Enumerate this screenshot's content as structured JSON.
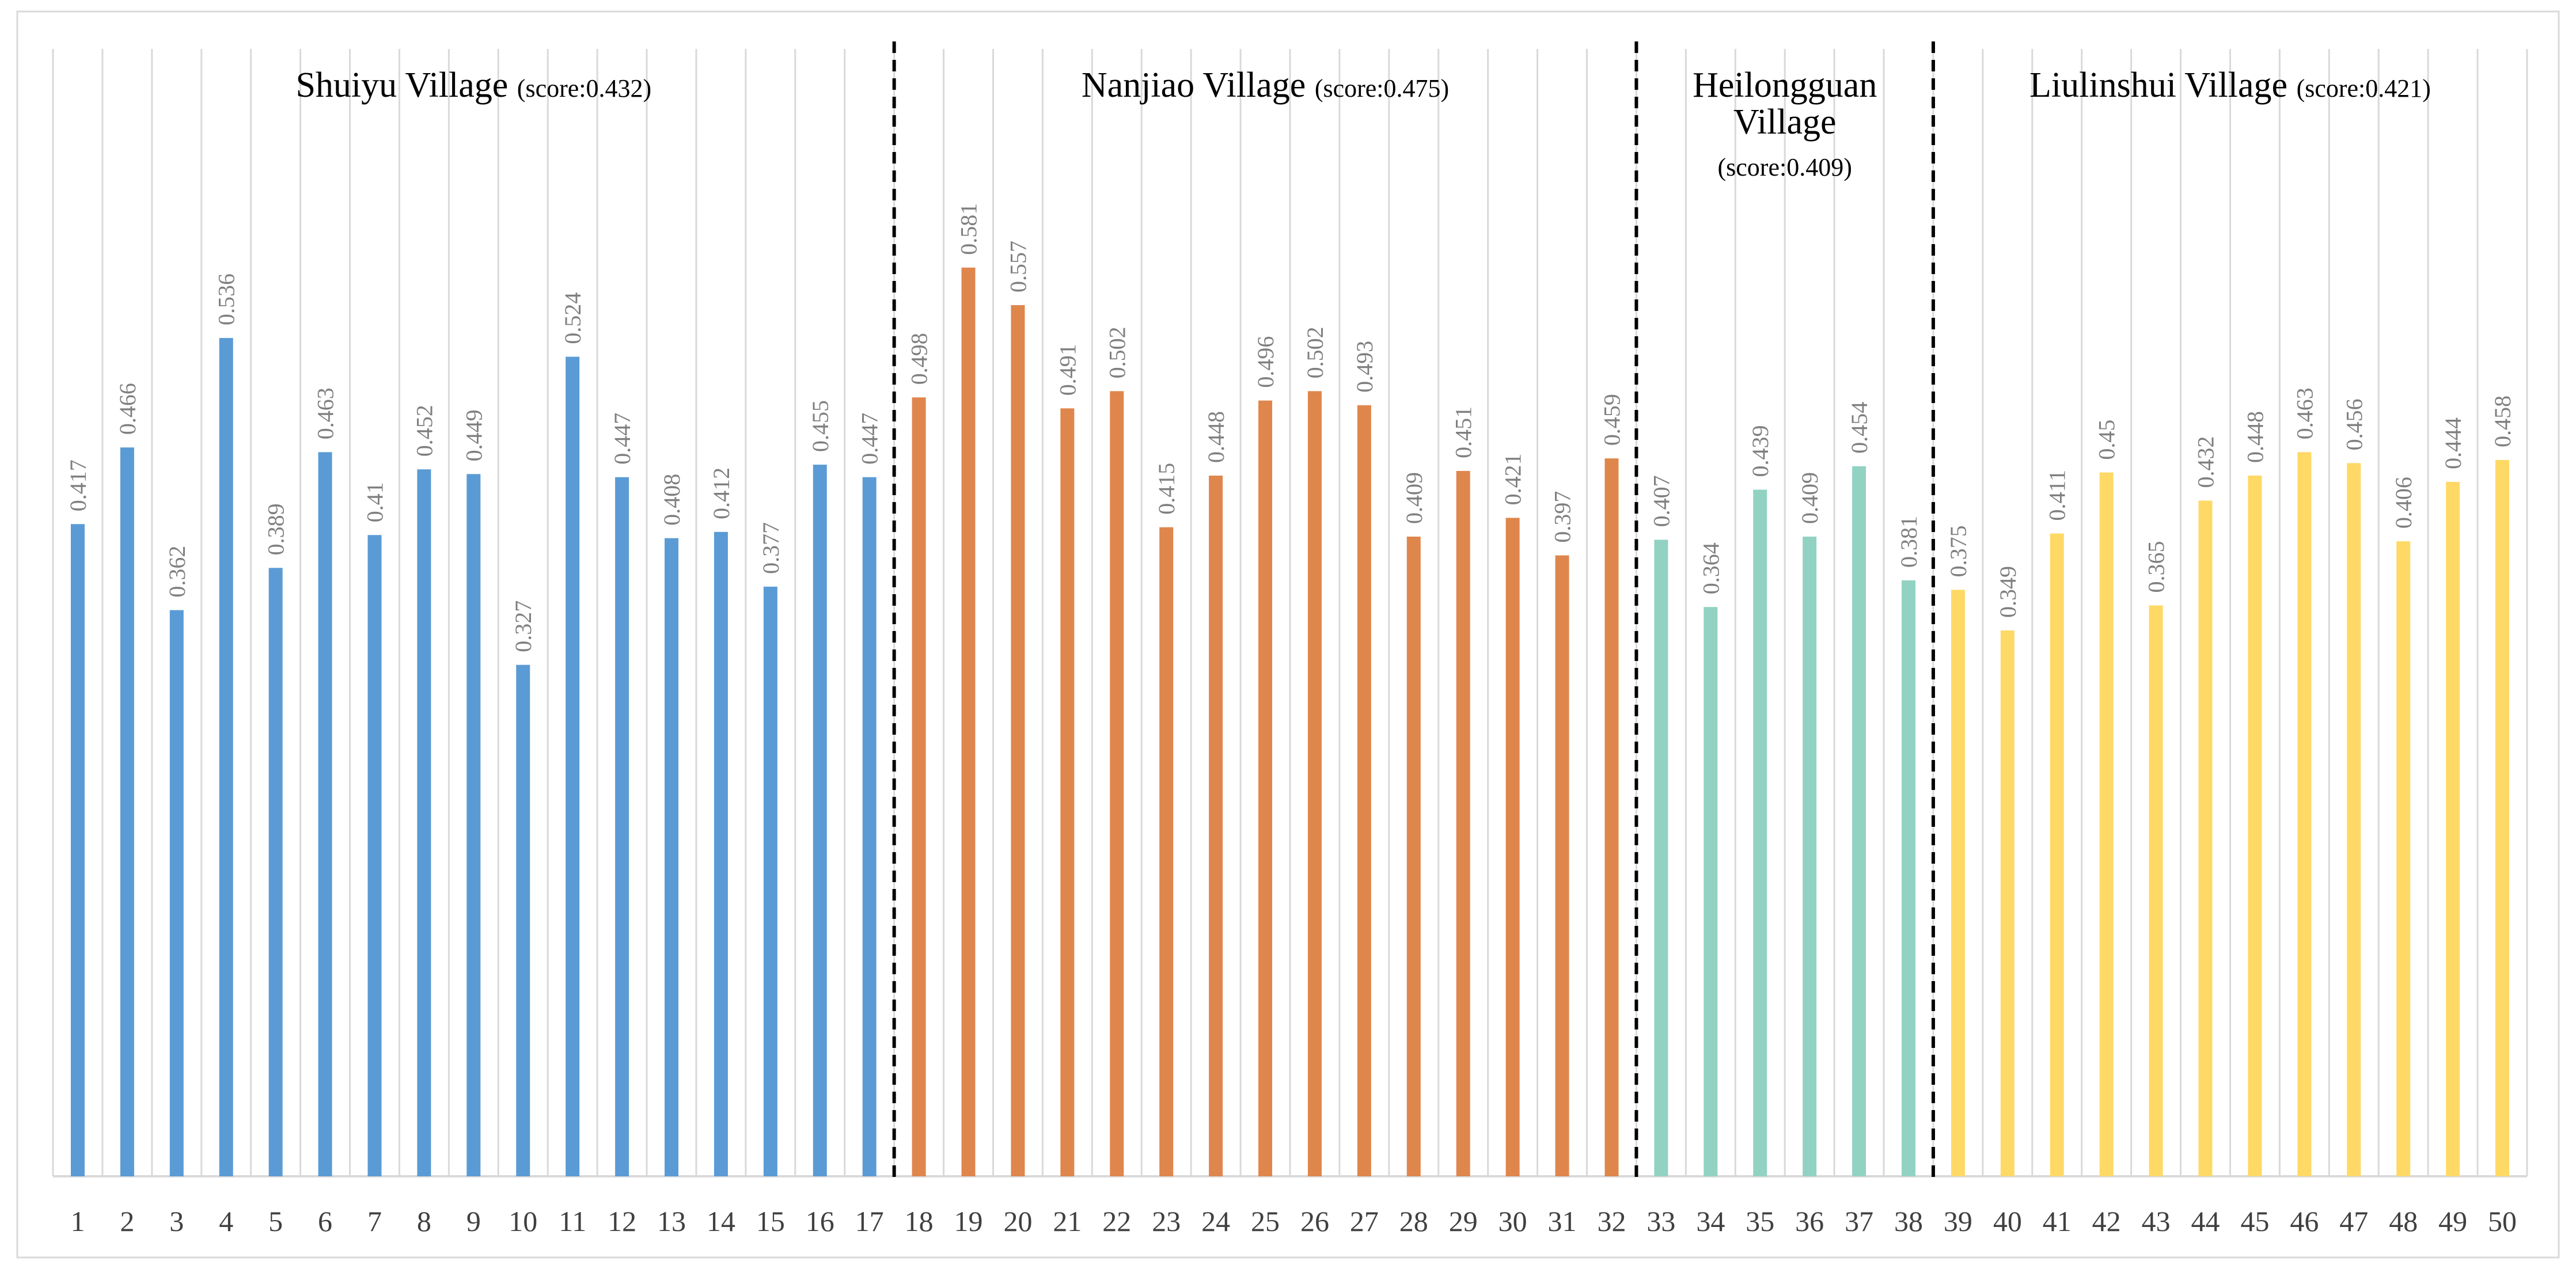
{
  "chart_data": {
    "type": "bar",
    "categories": [
      "1",
      "2",
      "3",
      "4",
      "5",
      "6",
      "7",
      "8",
      "9",
      "10",
      "11",
      "12",
      "13",
      "14",
      "15",
      "16",
      "17",
      "18",
      "19",
      "20",
      "21",
      "22",
      "23",
      "24",
      "25",
      "26",
      "27",
      "28",
      "29",
      "30",
      "31",
      "32",
      "33",
      "34",
      "35",
      "36",
      "37",
      "38",
      "39",
      "40",
      "41",
      "42",
      "43",
      "44",
      "45",
      "46",
      "47",
      "48",
      "49",
      "50"
    ],
    "values": [
      0.417,
      0.466,
      0.362,
      0.536,
      0.389,
      0.463,
      0.41,
      0.452,
      0.449,
      0.327,
      0.524,
      0.447,
      0.408,
      0.412,
      0.377,
      0.455,
      0.447,
      0.498,
      0.581,
      0.557,
      0.491,
      0.502,
      0.415,
      0.448,
      0.496,
      0.502,
      0.493,
      0.409,
      0.451,
      0.421,
      0.397,
      0.459,
      0.407,
      0.364,
      0.439,
      0.409,
      0.454,
      0.381,
      0.375,
      0.349,
      0.411,
      0.45,
      0.365,
      0.432,
      0.448,
      0.463,
      0.456,
      0.406,
      0.444,
      0.458
    ],
    "value_labels": [
      "0.417",
      "0.466",
      "0.362",
      "0.536",
      "0.389",
      "0.463",
      "0.41",
      "0.452",
      "0.449",
      "0.327",
      "0.524",
      "0.447",
      "0.408",
      "0.412",
      "0.377",
      "0.455",
      "0.447",
      "0.498",
      "0.581",
      "0.557",
      "0.491",
      "0.502",
      "0.415",
      "0.448",
      "0.496",
      "0.502",
      "0.493",
      "0.409",
      "0.451",
      "0.421",
      "0.397",
      "0.459",
      "0.407",
      "0.364",
      "0.439",
      "0.409",
      "0.454",
      "0.381",
      "0.375",
      "0.349",
      "0.411",
      "0.45",
      "0.365",
      "0.432",
      "0.448",
      "0.463",
      "0.456",
      "0.406",
      "0.444",
      "0.458"
    ],
    "ylim": [
      0,
      0.73
    ],
    "grid": true,
    "title": "",
    "xlabel": "",
    "ylabel": "",
    "groups": [
      {
        "name": "Shuiyu Village",
        "score_label": "(score:0.432)",
        "start": 1,
        "end": 17,
        "color": "#5b9bd5"
      },
      {
        "name": "Nanjiao Village",
        "score_label": "(score:0.475)",
        "start": 18,
        "end": 32,
        "color": "#df864d"
      },
      {
        "name": "Heilongguan Village",
        "name_lines": [
          "Heilongguan",
          "Village"
        ],
        "score_label": "(score:0.409)",
        "start": 33,
        "end": 38,
        "color": "#92d2c2"
      },
      {
        "name": "Liulinshui Village",
        "score_label": "(score:0.421)",
        "start": 39,
        "end": 50,
        "color": "#fed966"
      }
    ]
  }
}
